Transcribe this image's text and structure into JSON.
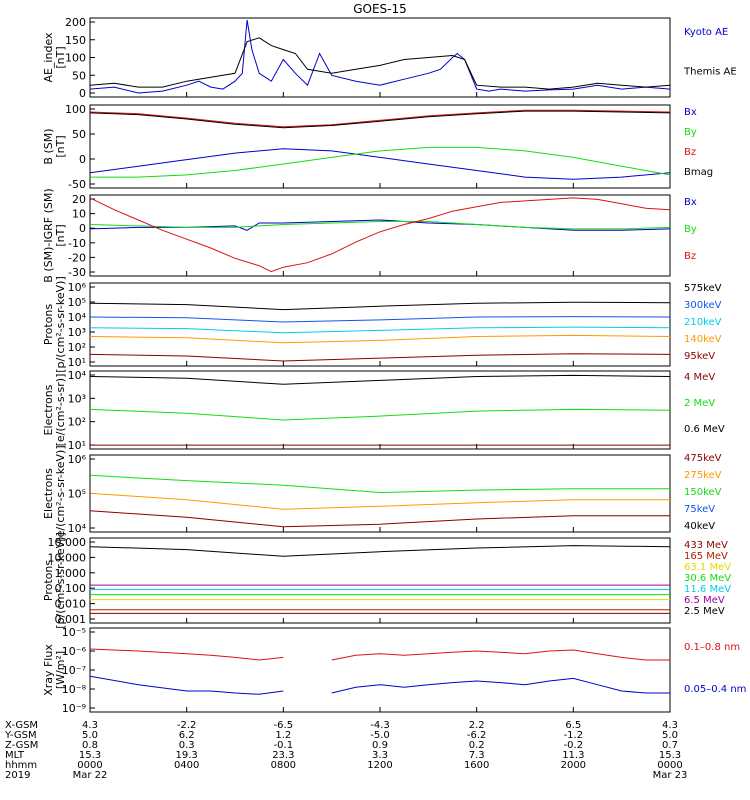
{
  "title": "GOES-15",
  "colors": {
    "blue": "#0000cc",
    "black": "#000000",
    "red": "#dd1111",
    "green": "#11dd11",
    "darkred": "#8b0000",
    "orange": "#ff9900",
    "medblue": "#1155ee",
    "cyan": "#00ccee",
    "yellow": "#dddd00",
    "purple": "#990099",
    "redbrown": "#aa2200"
  },
  "chart_data": [
    {
      "type": "line",
      "ylabel": "AE_index\n[nT]",
      "yticks": [
        "200",
        "150",
        "100",
        "50",
        "0"
      ],
      "ylim": [
        0,
        200
      ],
      "series": [
        {
          "name": "Kyoto AE",
          "color": "blue",
          "x": [
            0,
            1,
            2,
            3,
            4,
            4.5,
            5,
            5.5,
            6,
            6.3,
            6.5,
            6.7,
            7,
            7.5,
            8,
            8.5,
            9,
            9.5,
            10,
            11,
            12,
            13,
            14,
            14.5,
            15,
            15.2,
            15.5,
            16,
            16.5,
            17,
            18,
            19,
            20,
            21,
            22,
            23,
            24
          ],
          "y": [
            20,
            25,
            10,
            15,
            30,
            40,
            25,
            20,
            40,
            60,
            195,
            120,
            60,
            40,
            95,
            60,
            30,
            110,
            55,
            40,
            30,
            45,
            60,
            70,
            100,
            110,
            95,
            20,
            15,
            20,
            15,
            18,
            20,
            30,
            20,
            25,
            20
          ]
        },
        {
          "name": "Themis AE",
          "color": "black",
          "x": [
            0,
            1,
            2,
            3,
            4,
            5,
            6,
            6.5,
            7,
            7.5,
            8,
            8.5,
            9,
            10,
            11,
            12,
            13,
            14,
            15,
            15.5,
            16,
            17,
            18,
            19,
            20,
            21,
            22,
            23,
            24
          ],
          "y": [
            30,
            35,
            25,
            25,
            40,
            50,
            60,
            140,
            150,
            130,
            120,
            110,
            70,
            60,
            70,
            80,
            95,
            100,
            105,
            95,
            30,
            25,
            25,
            20,
            25,
            35,
            30,
            25,
            30
          ]
        }
      ]
    },
    {
      "type": "line",
      "ylabel": "B (SM)\n[nT]",
      "yticks": [
        "100",
        "50",
        "0",
        "-50"
      ],
      "ylim": [
        -60,
        130
      ],
      "series": [
        {
          "name": "Bx",
          "color": "blue",
          "x": [
            0,
            2,
            4,
            6,
            8,
            10,
            12,
            14,
            16,
            18,
            20,
            22,
            24
          ],
          "y": [
            -25,
            -10,
            5,
            20,
            30,
            25,
            10,
            -5,
            -20,
            -35,
            -40,
            -35,
            -25
          ]
        },
        {
          "name": "By",
          "color": "green",
          "x": [
            0,
            2,
            4,
            6,
            8,
            10,
            12,
            14,
            16,
            18,
            20,
            22,
            24
          ],
          "y": [
            -35,
            -35,
            -30,
            -20,
            -5,
            10,
            25,
            33,
            33,
            25,
            10,
            -10,
            -30
          ]
        },
        {
          "name": "Bz",
          "color": "red",
          "x": [
            0,
            2,
            4,
            6,
            8,
            10,
            12,
            14,
            16,
            18,
            20,
            22,
            24
          ],
          "y": [
            114,
            110,
            100,
            88,
            80,
            85,
            95,
            105,
            112,
            118,
            118,
            116,
            114
          ]
        },
        {
          "name": "Bmag",
          "color": "black",
          "x": [
            0,
            2,
            4,
            6,
            8,
            10,
            12,
            14,
            16,
            18,
            20,
            22,
            24
          ],
          "y": [
            112,
            108,
            98,
            86,
            78,
            83,
            93,
            103,
            110,
            116,
            116,
            114,
            112
          ]
        }
      ]
    },
    {
      "type": "line",
      "ylabel": "B (SM)-IGRF (SM)\n[nT]",
      "yticks": [
        "20",
        "10",
        "0",
        "-10",
        "-20",
        "-30"
      ],
      "ylim": [
        -33,
        22
      ],
      "series": [
        {
          "name": "Bx",
          "color": "blue",
          "x": [
            0,
            2,
            4,
            6,
            6.5,
            7,
            8,
            10,
            12,
            14,
            16,
            18,
            20,
            22,
            24
          ],
          "y": [
            -1,
            0,
            0,
            1,
            -2,
            3,
            3,
            4,
            5,
            3,
            2,
            0,
            -2,
            -2,
            -1
          ]
        },
        {
          "name": "By",
          "color": "green",
          "x": [
            0,
            2,
            4,
            6,
            7,
            8,
            10,
            12,
            14,
            16,
            18,
            20,
            22,
            24
          ],
          "y": [
            2,
            1,
            0,
            0,
            1,
            2,
            3,
            4,
            4,
            2,
            0,
            -1,
            -1,
            0
          ]
        },
        {
          "name": "Bz",
          "color": "red",
          "x": [
            0,
            1,
            2,
            3,
            4,
            5,
            6,
            7,
            7.5,
            8,
            9,
            10,
            11,
            12,
            13,
            14,
            15,
            16,
            17,
            18,
            19,
            20,
            21,
            22,
            23,
            24
          ],
          "y": [
            20,
            12,
            5,
            -2,
            -8,
            -14,
            -21,
            -26,
            -30,
            -27,
            -24,
            -18,
            -10,
            -3,
            2,
            6,
            11,
            14,
            17,
            18,
            19,
            20,
            19,
            16,
            13,
            12
          ]
        }
      ]
    },
    {
      "type": "line",
      "ylabel": "Protons\n[p/(cm²-s-sr-keV)]",
      "yticks": [
        "10⁶",
        "10⁵",
        "10⁴",
        "10³",
        "10²",
        "10¹"
      ],
      "log_range": [
        1,
        6
      ],
      "series": [
        {
          "name": "575keV",
          "color": "black",
          "x": [
            0,
            4,
            8,
            12,
            16,
            20,
            24
          ],
          "y": [
            60000,
            50000,
            25000,
            40000,
            60000,
            70000,
            65000
          ]
        },
        {
          "name": "300keV",
          "color": "medblue",
          "x": [
            0,
            4,
            8,
            12,
            16,
            20,
            24
          ],
          "y": [
            9000,
            8000,
            4500,
            6000,
            9000,
            9500,
            9000
          ]
        },
        {
          "name": "210keV",
          "color": "cyan",
          "x": [
            0,
            4,
            8,
            12,
            16,
            20,
            24
          ],
          "y": [
            2000,
            1800,
            1000,
            1400,
            2000,
            2200,
            2000
          ]
        },
        {
          "name": "140keV",
          "color": "orange",
          "x": [
            0,
            4,
            8,
            12,
            16,
            20,
            24
          ],
          "y": [
            600,
            500,
            250,
            350,
            600,
            700,
            600
          ]
        },
        {
          "name": "95keV",
          "color": "darkred",
          "x": [
            0,
            4,
            8,
            12,
            16,
            20,
            24
          ],
          "y": [
            50,
            40,
            20,
            30,
            45,
            55,
            50
          ]
        }
      ]
    },
    {
      "type": "line",
      "ylabel": "Electrons\n[e/(cm²-s-sr)]",
      "yticks": [
        "10⁴",
        "10³",
        "10²",
        "10¹"
      ],
      "log_range": [
        1,
        4.5
      ],
      "series": [
        {
          "name": "4 MeV",
          "color": "darkred",
          "x": [
            0,
            4,
            8,
            12,
            16,
            20,
            24
          ],
          "y": [
            15,
            15,
            15,
            15,
            15,
            15,
            15
          ]
        },
        {
          "name": "2 MeV",
          "color": "green",
          "x": [
            0,
            4,
            8,
            12,
            16,
            20,
            24
          ],
          "y": [
            600,
            400,
            200,
            300,
            500,
            600,
            550
          ]
        },
        {
          "name": "0.6 MeV",
          "color": "black",
          "x": [
            0,
            4,
            8,
            12,
            16,
            20,
            24
          ],
          "y": [
            18000,
            15000,
            8000,
            12000,
            18000,
            20000,
            18000
          ]
        }
      ]
    },
    {
      "type": "line",
      "ylabel": "Electrons\n[e/(cm²-s-sr-keV)]",
      "yticks": [
        "10⁶",
        "10⁵",
        "10⁴"
      ],
      "log_range": [
        3.9,
        6
      ],
      "series": [
        {
          "name": "475keV",
          "color": "darkred",
          "x": [
            0,
            4,
            8,
            12,
            16,
            20,
            24
          ],
          "y": [
            30000,
            20000,
            11000,
            13000,
            18000,
            22000,
            22000
          ]
        },
        {
          "name": "275keV",
          "color": "orange",
          "x": [
            0,
            4,
            8,
            12,
            16,
            20,
            24
          ],
          "y": [
            90000,
            60000,
            33000,
            40000,
            50000,
            60000,
            60000
          ]
        },
        {
          "name": "150keV",
          "color": "green",
          "x": [
            0,
            4,
            8,
            12,
            16,
            20,
            24
          ],
          "y": [
            280000,
            200000,
            150000,
            95000,
            110000,
            120000,
            120000
          ]
        },
        {
          "name": "75keV",
          "color": "medblue",
          "x": [
            0,
            24
          ],
          "y": [
            1000000,
            1000000
          ]
        },
        {
          "name": "40keV",
          "color": "black",
          "x": [
            0,
            24
          ],
          "y": [
            1000000,
            1000000
          ]
        }
      ]
    },
    {
      "type": "line",
      "ylabel": "Protons\n[p/(cm²-s-sr-keV)]",
      "yticks": [
        "10.000",
        "10.000",
        "1.000",
        "0.100",
        "0.010",
        "0.001"
      ],
      "log_range": [
        -3.1,
        2
      ],
      "series": [
        {
          "name": "433 MeV",
          "color": "darkred",
          "x": [
            0,
            24
          ],
          "y": [
            0.003,
            0.003
          ]
        },
        {
          "name": "165 MeV",
          "color": "redbrown",
          "x": [
            0,
            24
          ],
          "y": [
            0.005,
            0.005
          ]
        },
        {
          "name": "63.1 MeV",
          "color": "yellow",
          "x": [
            0,
            24
          ],
          "y": [
            0.02,
            0.02
          ]
        },
        {
          "name": "30.6 MeV",
          "color": "green",
          "x": [
            0,
            24
          ],
          "y": [
            0.04,
            0.04
          ]
        },
        {
          "name": "11.6 MeV",
          "color": "cyan",
          "x": [
            0,
            24
          ],
          "y": [
            0.08,
            0.08
          ]
        },
        {
          "name": "6.5 MeV",
          "color": "purple",
          "x": [
            0,
            24
          ],
          "y": [
            0.15,
            0.15
          ]
        },
        {
          "name": "2.5 MeV",
          "color": "black",
          "x": [
            0,
            4,
            8,
            12,
            16,
            20,
            24
          ],
          "y": [
            30,
            20,
            8,
            15,
            25,
            35,
            30
          ]
        }
      ]
    },
    {
      "type": "line",
      "ylabel": "Xray Flux\n[W/m²]",
      "yticks": [
        "10⁻⁵",
        "10⁻⁶",
        "10⁻⁷",
        "10⁻⁸",
        "10⁻⁹"
      ],
      "log_range": [
        -9,
        -5
      ],
      "series": [
        {
          "name": "0.1–0.8 nm",
          "color": "red",
          "x": [
            0,
            2,
            4,
            5,
            6,
            7,
            8,
            9,
            10,
            11,
            12,
            13,
            14,
            15,
            16,
            17,
            18,
            19,
            20,
            21,
            22,
            23,
            24
          ],
          "y": [
            1e-06,
            8e-07,
            6e-07,
            5e-07,
            4e-07,
            3e-07,
            4e-07,
            null,
            3e-07,
            5e-07,
            6e-07,
            5e-07,
            6e-07,
            7e-07,
            8e-07,
            7e-07,
            6e-07,
            8e-07,
            9e-07,
            6e-07,
            4e-07,
            3e-07,
            3e-07
          ]
        },
        {
          "name": "0.05–0.4 nm",
          "color": "blue",
          "x": [
            0,
            2,
            4,
            5,
            6,
            7,
            8,
            9,
            10,
            11,
            12,
            13,
            14,
            15,
            16,
            17,
            18,
            19,
            20,
            21,
            22,
            23,
            24
          ],
          "y": [
            5e-08,
            2e-08,
            1e-08,
            1e-08,
            8e-09,
            7e-09,
            1e-08,
            null,
            8e-09,
            1.5e-08,
            2e-08,
            1.5e-08,
            2e-08,
            2.5e-08,
            3e-08,
            2.5e-08,
            2e-08,
            3e-08,
            4e-08,
            2e-08,
            1e-08,
            8e-09,
            8e-09
          ]
        }
      ]
    }
  ],
  "footer": {
    "row_labels": [
      "X-GSM",
      "Y-GSM",
      "Z-GSM",
      "MLT",
      "hhmm",
      "2019"
    ],
    "columns": [
      [
        "4.3",
        "5.0",
        "0.8",
        "15.3",
        "0000",
        "Mar 22"
      ],
      [
        "-2.2",
        "6.2",
        "0.3",
        "19.3",
        "0400",
        ""
      ],
      [
        "-6.5",
        "1.2",
        "-0.1",
        "23.3",
        "0800",
        ""
      ],
      [
        "-4.3",
        "-5.0",
        "0.9",
        "3.3",
        "1200",
        ""
      ],
      [
        "2.2",
        "-6.2",
        "0.2",
        "7.3",
        "1600",
        ""
      ],
      [
        "6.5",
        "-1.2",
        "-0.2",
        "11.3",
        "2000",
        ""
      ],
      [
        "4.3",
        "5.0",
        "0.7",
        "15.3",
        "0000",
        "Mar 23"
      ]
    ]
  }
}
